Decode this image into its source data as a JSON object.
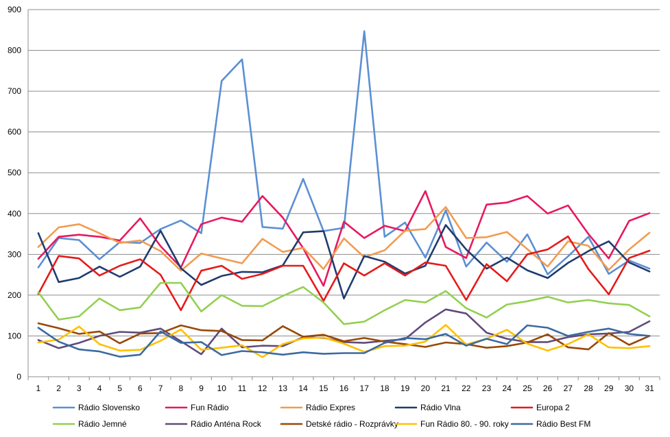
{
  "chart_data": {
    "type": "line",
    "title": "",
    "xlabel": "",
    "ylabel": "",
    "ylim": [
      0,
      900
    ],
    "y_ticks": [
      0,
      100,
      200,
      300,
      400,
      500,
      600,
      700,
      800,
      900
    ],
    "grid": "horizontal",
    "legend_position": "bottom",
    "x": [
      1,
      2,
      3,
      4,
      5,
      6,
      7,
      8,
      9,
      10,
      11,
      12,
      13,
      14,
      15,
      16,
      17,
      18,
      19,
      20,
      21,
      22,
      23,
      24,
      25,
      26,
      27,
      28,
      29,
      30,
      31
    ],
    "series": [
      {
        "name": "Rádio Slovensko",
        "color": "#5b8fd3",
        "values": [
          268,
          340,
          335,
          288,
          330,
          328,
          362,
          383,
          352,
          725,
          778,
          367,
          363,
          485,
          357,
          365,
          847,
          343,
          378,
          292,
          408,
          270,
          329,
          282,
          349,
          251,
          295,
          343,
          252,
          285,
          265
        ]
      },
      {
        "name": "Fun Rádio",
        "color": "#e8185e",
        "values": [
          289,
          343,
          348,
          343,
          334,
          388,
          320,
          268,
          374,
          390,
          380,
          443,
          390,
          315,
          223,
          380,
          340,
          370,
          357,
          455,
          318,
          291,
          422,
          427,
          443,
          400,
          420,
          350,
          290,
          382,
          401
        ]
      },
      {
        "name": "Rádio Expres",
        "color": "#f29b50",
        "values": [
          318,
          366,
          374,
          352,
          328,
          334,
          308,
          260,
          302,
          290,
          278,
          338,
          306,
          316,
          264,
          339,
          293,
          310,
          358,
          362,
          416,
          340,
          342,
          355,
          313,
          270,
          332,
          321,
          262,
          312,
          353
        ]
      },
      {
        "name": "Rádio Vlna",
        "color": "#1f3c6e",
        "values": [
          352,
          232,
          242,
          270,
          245,
          270,
          358,
          266,
          225,
          247,
          257,
          256,
          273,
          354,
          357,
          192,
          296,
          282,
          253,
          272,
          372,
          312,
          265,
          292,
          261,
          242,
          279,
          308,
          332,
          280,
          258
        ]
      },
      {
        "name": "Europa 2",
        "color": "#e51a1a",
        "values": [
          203,
          296,
          290,
          248,
          272,
          288,
          250,
          163,
          260,
          272,
          240,
          252,
          272,
          272,
          186,
          278,
          248,
          278,
          248,
          280,
          272,
          188,
          276,
          234,
          300,
          312,
          344,
          264,
          202,
          291,
          309
        ]
      },
      {
        "name": "Rádio Jemné",
        "color": "#92d050",
        "values": [
          207,
          140,
          148,
          192,
          163,
          170,
          230,
          230,
          160,
          200,
          174,
          173,
          198,
          220,
          182,
          129,
          135,
          163,
          188,
          182,
          210,
          168,
          145,
          177,
          185,
          196,
          182,
          188,
          180,
          176,
          148
        ]
      },
      {
        "name": "Rádio Anténa Rock",
        "color": "#604a7b",
        "values": [
          90,
          70,
          83,
          100,
          110,
          108,
          118,
          87,
          55,
          118,
          72,
          76,
          75,
          97,
          95,
          85,
          83,
          88,
          92,
          133,
          165,
          155,
          108,
          93,
          85,
          85,
          97,
          104,
          106,
          110,
          136
        ]
      },
      {
        "name": "Detské rádio - Rozprávky",
        "color": "#984807",
        "values": [
          131,
          119,
          105,
          111,
          82,
          106,
          107,
          126,
          114,
          112,
          90,
          89,
          124,
          98,
          103,
          87,
          95,
          86,
          80,
          73,
          84,
          80,
          71,
          75,
          84,
          104,
          72,
          67,
          107,
          78,
          100
        ]
      },
      {
        "name": "Fun Rádio 80. - 90. roky",
        "color": "#ffc000",
        "values": [
          84,
          91,
          123,
          80,
          64,
          66,
          88,
          116,
          66,
          71,
          77,
          48,
          80,
          94,
          96,
          81,
          61,
          75,
          76,
          86,
          127,
          79,
          93,
          115,
          81,
          64,
          80,
          104,
          72,
          70,
          75
        ]
      },
      {
        "name": "Rádio Best FM",
        "color": "#3b6aa0",
        "values": [
          120,
          86,
          67,
          62,
          49,
          54,
          111,
          83,
          85,
          53,
          63,
          60,
          54,
          60,
          56,
          58,
          58,
          83,
          95,
          92,
          105,
          76,
          93,
          80,
          126,
          120,
          100,
          110,
          118,
          105,
          100
        ]
      }
    ]
  }
}
